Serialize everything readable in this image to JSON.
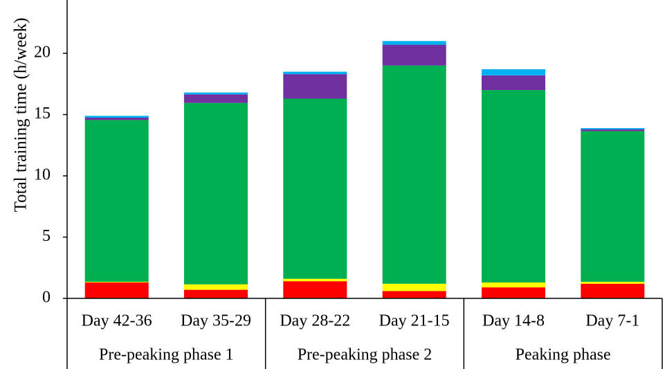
{
  "chart_data": {
    "type": "bar",
    "stacked": true,
    "ylabel": "Total training time (h/week)",
    "xlabel": "",
    "ylim": [
      0,
      24
    ],
    "yticks": [
      0,
      5,
      10,
      15,
      20
    ],
    "grid": false,
    "legend": "none",
    "categories": [
      "Day 42-36",
      "Day 35-29",
      "Day 28-22",
      "Day 21-15",
      "Day 14-8",
      "Day 7-1"
    ],
    "groups": [
      {
        "label": "Pre-peaking phase 1",
        "categories": [
          "Day 42-36",
          "Day 35-29"
        ]
      },
      {
        "label": "Pre-peaking phase 2",
        "categories": [
          "Day 28-22",
          "Day 21-15"
        ]
      },
      {
        "label": "Peaking phase",
        "categories": [
          "Day 14-8",
          "Day 7-1"
        ]
      }
    ],
    "series": [
      {
        "color": "#ff0000",
        "values": [
          1.3,
          0.7,
          1.4,
          0.6,
          0.9,
          1.2
        ]
      },
      {
        "color": "#ffff00",
        "values": [
          0.05,
          0.45,
          0.2,
          0.6,
          0.4,
          0.15
        ]
      },
      {
        "color": "#00b050",
        "values": [
          13.2,
          14.8,
          14.7,
          17.8,
          15.7,
          12.3
        ]
      },
      {
        "color": "#7030a0",
        "values": [
          0.2,
          0.7,
          2.0,
          1.7,
          1.2,
          0.15
        ]
      },
      {
        "color": "#00b0f0",
        "values": [
          0.15,
          0.15,
          0.2,
          0.3,
          0.5,
          0.1
        ]
      }
    ]
  }
}
